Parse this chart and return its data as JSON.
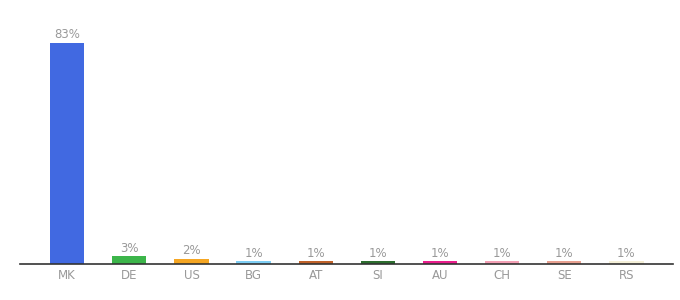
{
  "categories": [
    "MK",
    "DE",
    "US",
    "BG",
    "AT",
    "SI",
    "AU",
    "CH",
    "SE",
    "RS"
  ],
  "values": [
    83,
    3,
    2,
    1,
    1,
    1,
    1,
    1,
    1,
    1
  ],
  "bar_colors": [
    "#4169e1",
    "#3cb54a",
    "#f5a623",
    "#7ecef4",
    "#c0622a",
    "#2d6e2f",
    "#e91e8c",
    "#f4a0b5",
    "#e8a090",
    "#f5f0d8"
  ],
  "labels": [
    "83%",
    "3%",
    "2%",
    "1%",
    "1%",
    "1%",
    "1%",
    "1%",
    "1%",
    "1%"
  ],
  "label_fontsize": 8.5,
  "tick_fontsize": 8.5,
  "label_color": "#999999",
  "tick_color": "#999999",
  "background_color": "#ffffff",
  "ylim": [
    0,
    90
  ],
  "bar_width": 0.55
}
